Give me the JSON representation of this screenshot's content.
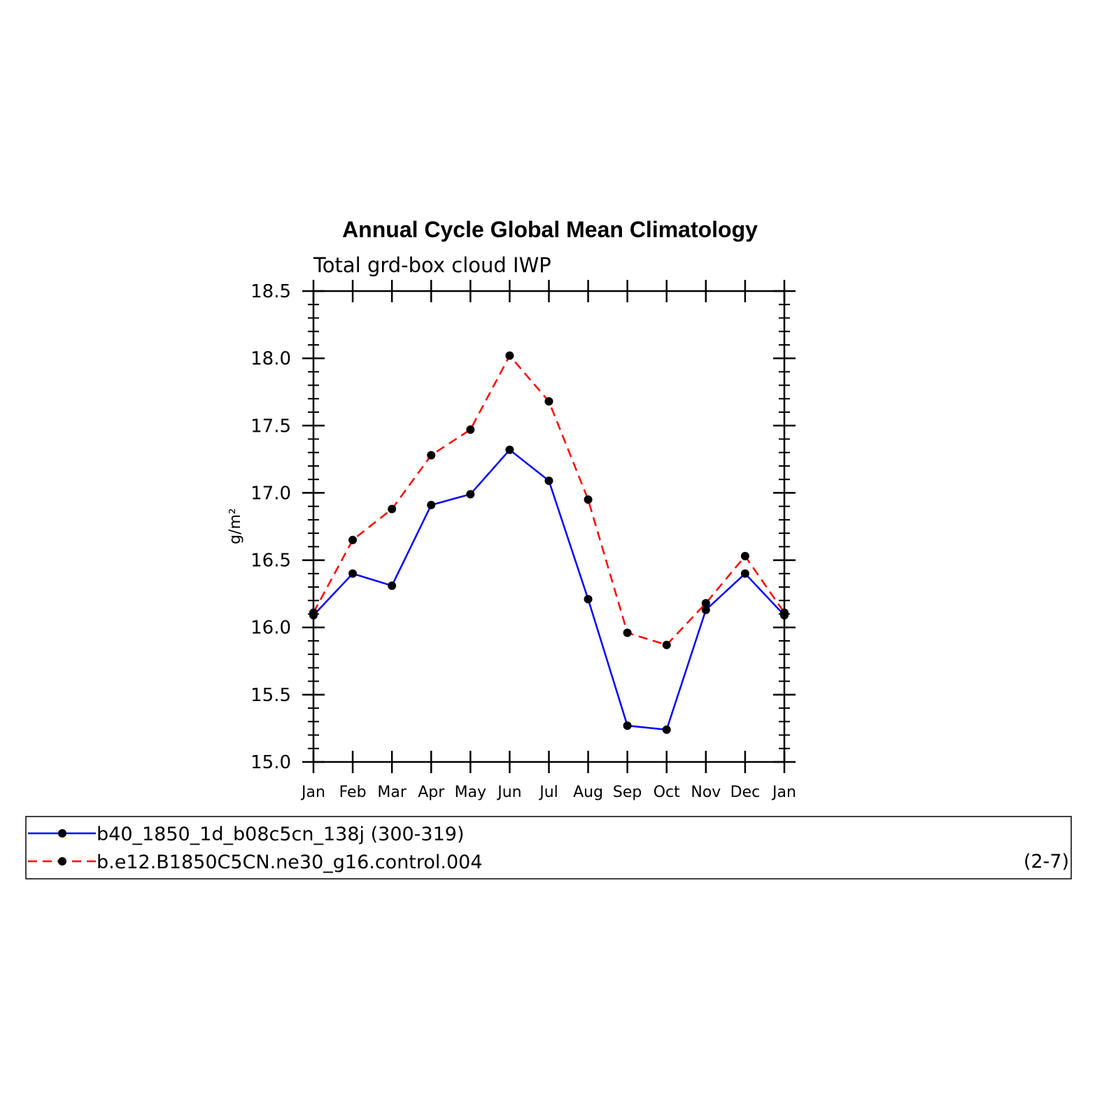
{
  "chart_data": {
    "type": "line",
    "title": "Annual Cycle Global Mean Climatology",
    "subtitle": "Total grd-box cloud IWP",
    "ylabel": "g/m²",
    "xlabel": "",
    "categories": [
      "Jan",
      "Feb",
      "Mar",
      "Apr",
      "May",
      "Jun",
      "Jul",
      "Aug",
      "Sep",
      "Oct",
      "Nov",
      "Dec",
      "Jan"
    ],
    "ylim": [
      15.0,
      18.5
    ],
    "yticks": [
      15.0,
      15.5,
      16.0,
      16.5,
      17.0,
      17.5,
      18.0,
      18.5
    ],
    "ytick_labels": [
      "15.0",
      "15.5",
      "16.0",
      "16.5",
      "17.0",
      "17.5",
      "18.0",
      "18.5"
    ],
    "grid": false,
    "legend_position": "bottom",
    "series": [
      {
        "name": "b40_1850_1d_b08c5cn_138j (300-319)",
        "color": "#0000ff",
        "line_style": "solid",
        "marker": "filled-circle",
        "values": [
          16.09,
          16.4,
          16.31,
          16.91,
          16.99,
          17.32,
          17.09,
          16.21,
          15.27,
          15.24,
          16.13,
          16.4,
          16.09
        ]
      },
      {
        "name": "b.e12.B1850C5CN.ne30_g16.control.004",
        "color": "#ff0000",
        "line_style": "dashed",
        "marker": "filled-circle",
        "values": [
          16.11,
          16.65,
          16.88,
          17.28,
          17.47,
          18.02,
          17.68,
          16.95,
          15.96,
          15.87,
          16.18,
          16.53,
          16.11
        ]
      }
    ],
    "panel_label": "(2-7)"
  }
}
